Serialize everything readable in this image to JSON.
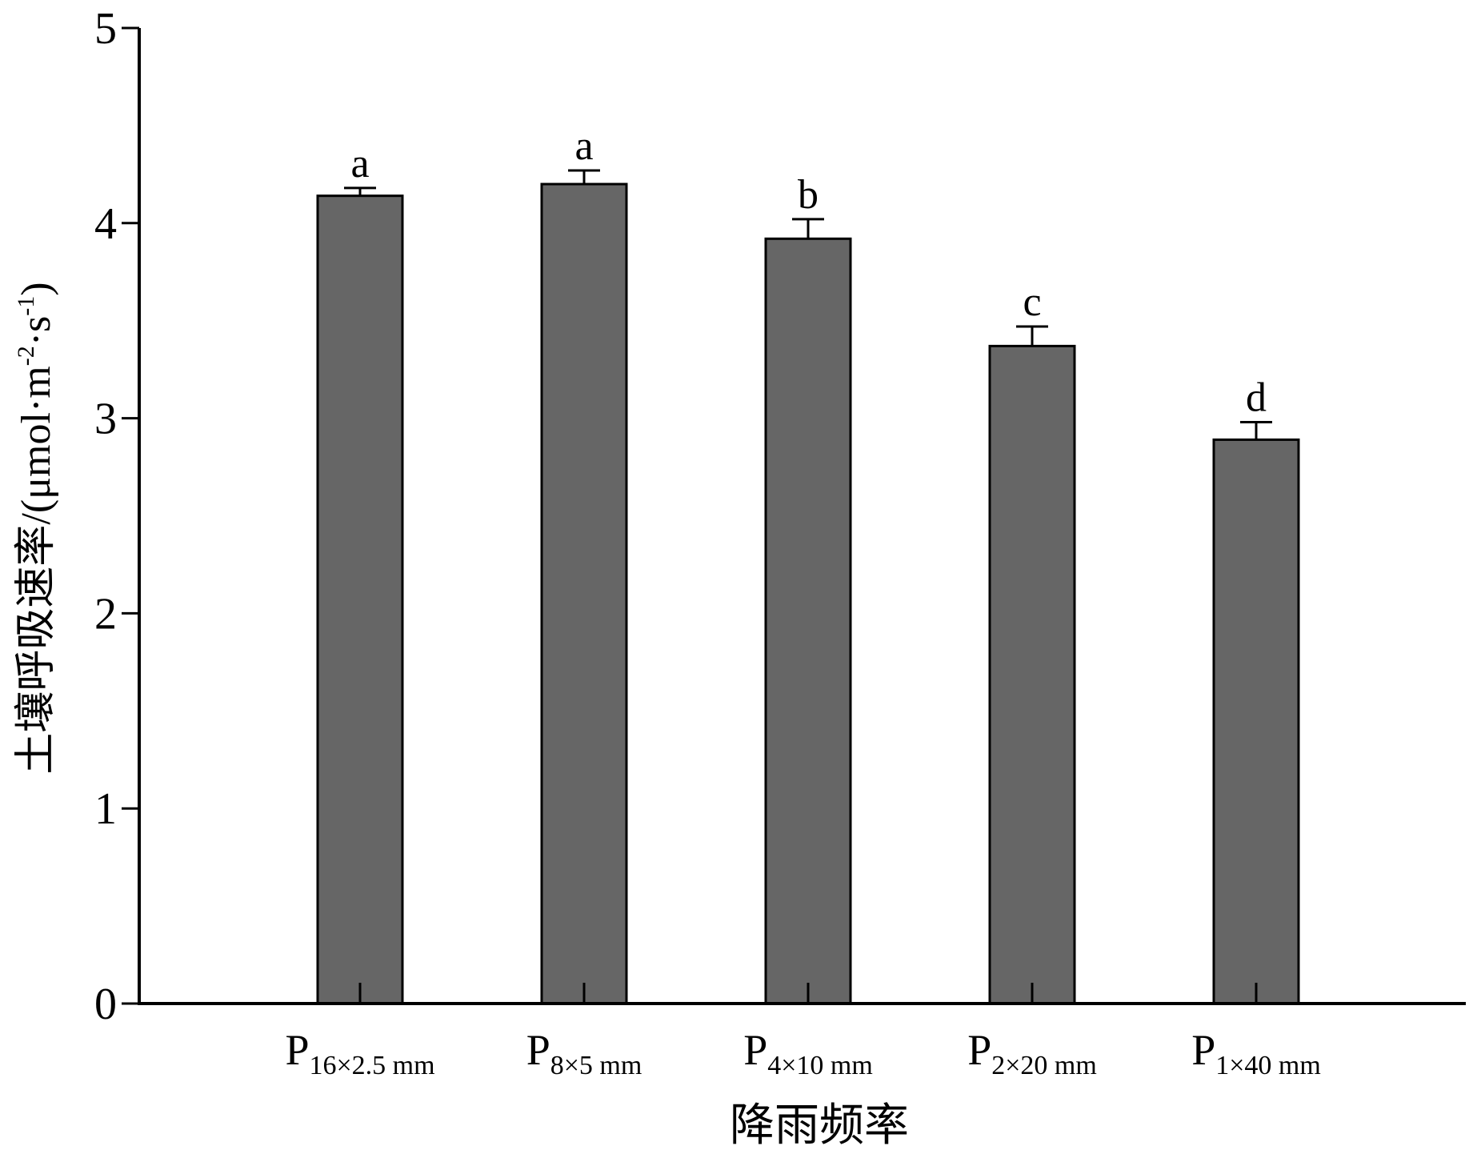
{
  "chart_data": {
    "type": "bar",
    "categories": [
      {
        "main": "P",
        "sub": "16×2.5 mm"
      },
      {
        "main": "P",
        "sub": "8×5 mm"
      },
      {
        "main": "P",
        "sub": "4×10 mm"
      },
      {
        "main": "P",
        "sub": "2×20 mm"
      },
      {
        "main": "P",
        "sub": "1×40 mm"
      }
    ],
    "values": [
      4.14,
      4.2,
      3.92,
      3.37,
      2.89
    ],
    "errors": [
      0.04,
      0.07,
      0.1,
      0.1,
      0.09
    ],
    "significance": [
      "a",
      "a",
      "b",
      "c",
      "d"
    ],
    "xlabel": "降雨频率",
    "ylabel": {
      "prefix": "土壤呼吸速率/(μmol·m",
      "exp1": "-2",
      "mid": "·s",
      "exp2": "-1",
      "suffix": ")"
    },
    "ylim": [
      0,
      5
    ],
    "yticks": [
      "0",
      "1",
      "2",
      "3",
      "4",
      "5"
    ],
    "grid": false,
    "legend": "none",
    "colors": {
      "bar": "#666666",
      "outline": "#000000"
    }
  }
}
